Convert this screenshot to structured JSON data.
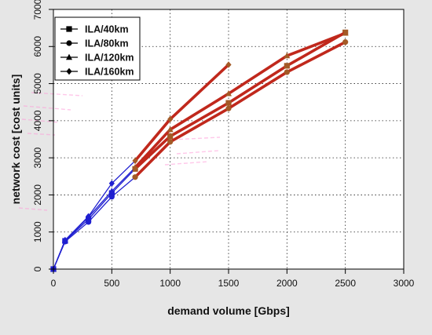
{
  "chart_data": {
    "type": "line",
    "xlabel": "demand volume [Gbps]",
    "ylabel": "network cost [cost units]",
    "xlim": [
      0,
      3000
    ],
    "ylim": [
      0,
      7000
    ],
    "xticks": [
      0,
      500,
      1000,
      1500,
      2000,
      2500,
      3000
    ],
    "yticks": [
      0,
      1000,
      2000,
      3000,
      4000,
      5000,
      6000,
      7000
    ],
    "grid": true,
    "legend_position": "top-left",
    "colors": {
      "low_demand": "#1f1fd0",
      "high_demand": "#c0281c",
      "high_demand_marker": "#a35a26",
      "panel_background": "#e6e6e6",
      "plot_background": "#ffffff"
    },
    "series": [
      {
        "name": "ILA/40km",
        "marker": "square",
        "x": [
          0,
          100,
          300,
          500,
          700,
          1000,
          1500,
          2000,
          2500
        ],
        "y": [
          0,
          760,
          1340,
          2050,
          2700,
          3580,
          4480,
          5480,
          6380
        ]
      },
      {
        "name": "ILA/80km",
        "marker": "circle",
        "x": [
          0,
          100,
          300,
          500,
          700,
          1000,
          1500,
          2000,
          2500
        ],
        "y": [
          0,
          740,
          1270,
          1950,
          2480,
          3430,
          4330,
          5310,
          6120
        ]
      },
      {
        "name": "ILA/120km",
        "marker": "triangle",
        "x": [
          0,
          100,
          300,
          500,
          700,
          1000,
          1500,
          2000,
          2500
        ],
        "y": [
          0,
          770,
          1400,
          2100,
          2740,
          3760,
          4730,
          5750,
          6360
        ]
      },
      {
        "name": "ILA/160km",
        "marker": "diamond",
        "x": [
          0,
          100,
          300,
          500,
          700,
          1000,
          1500
        ],
        "y": [
          0,
          780,
          1420,
          2310,
          2920,
          4040,
          5510
        ]
      }
    ],
    "low_demand_max_x": 700
  }
}
